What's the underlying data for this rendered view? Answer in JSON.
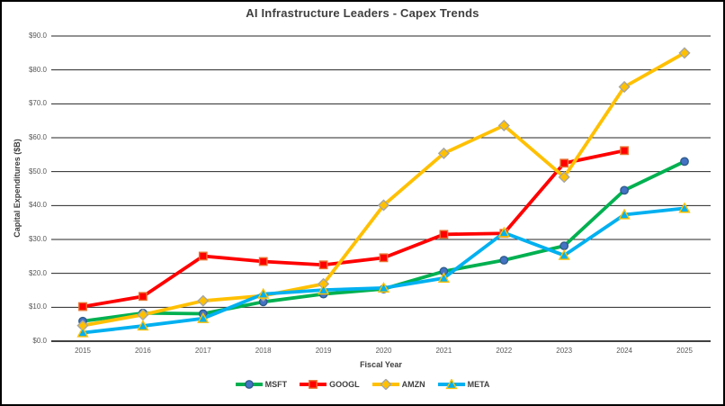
{
  "chart": {
    "title": "AI Infrastructure Leaders - Capex Trends",
    "xlabel": "Fiscal Year",
    "ylabel": "Capital Expenditures ($B)"
  },
  "chart_data": {
    "type": "line",
    "title": "AI Infrastructure Leaders - Capex Trends",
    "xlabel": "Fiscal Year",
    "ylabel": "Capital Expenditures ($B)",
    "x": [
      "2015",
      "2016",
      "2017",
      "2018",
      "2019",
      "2020",
      "2021",
      "2022",
      "2023",
      "2024",
      "2025"
    ],
    "series": [
      {
        "name": "MSFT",
        "color": "#00B050",
        "marker": "circle",
        "marker_fill": "#4472C4",
        "marker_stroke": "#2E5C8A",
        "values": [
          5.9,
          8.3,
          8.1,
          11.6,
          13.9,
          15.4,
          20.6,
          23.9,
          28.1,
          44.5,
          53.0
        ]
      },
      {
        "name": "GOOGL",
        "color": "#FE0000",
        "marker": "square",
        "marker_fill": "#FE0000",
        "marker_stroke": "#E97132",
        "values": [
          10.2,
          13.2,
          25.1,
          23.5,
          22.5,
          24.6,
          31.5,
          31.8,
          52.5,
          56.2,
          null
        ]
      },
      {
        "name": "AMZN",
        "color": "#FFC000",
        "marker": "diamond",
        "marker_fill": "#FFC000",
        "marker_stroke": "#A6A6A6",
        "values": [
          4.6,
          7.8,
          11.9,
          13.4,
          16.9,
          40.1,
          55.4,
          63.6,
          48.4,
          75.0,
          85.0
        ]
      },
      {
        "name": "META",
        "color": "#00B0F0",
        "marker": "triangle",
        "marker_fill": "#00B0F0",
        "marker_stroke": "#FFC000",
        "values": [
          2.5,
          4.5,
          6.7,
          13.9,
          15.1,
          15.7,
          18.6,
          32.0,
          25.3,
          37.3,
          39.2
        ]
      }
    ],
    "ylim": [
      0,
      90
    ],
    "ytick_step": 10,
    "ytick_labels": [
      "$0.0",
      "$10.0",
      "$20.0",
      "$30.0",
      "$40.0",
      "$50.0",
      "$60.0",
      "$70.0",
      "$80.0",
      "$90.0"
    ],
    "grid": true,
    "legend_position": "bottom"
  },
  "colors": {
    "background": "#FFFFFF",
    "frame_border": "#000000",
    "gridline": "#262626",
    "axis_line": "#000000",
    "title_text": "#3F3F3F",
    "tick_text": "#595959"
  }
}
